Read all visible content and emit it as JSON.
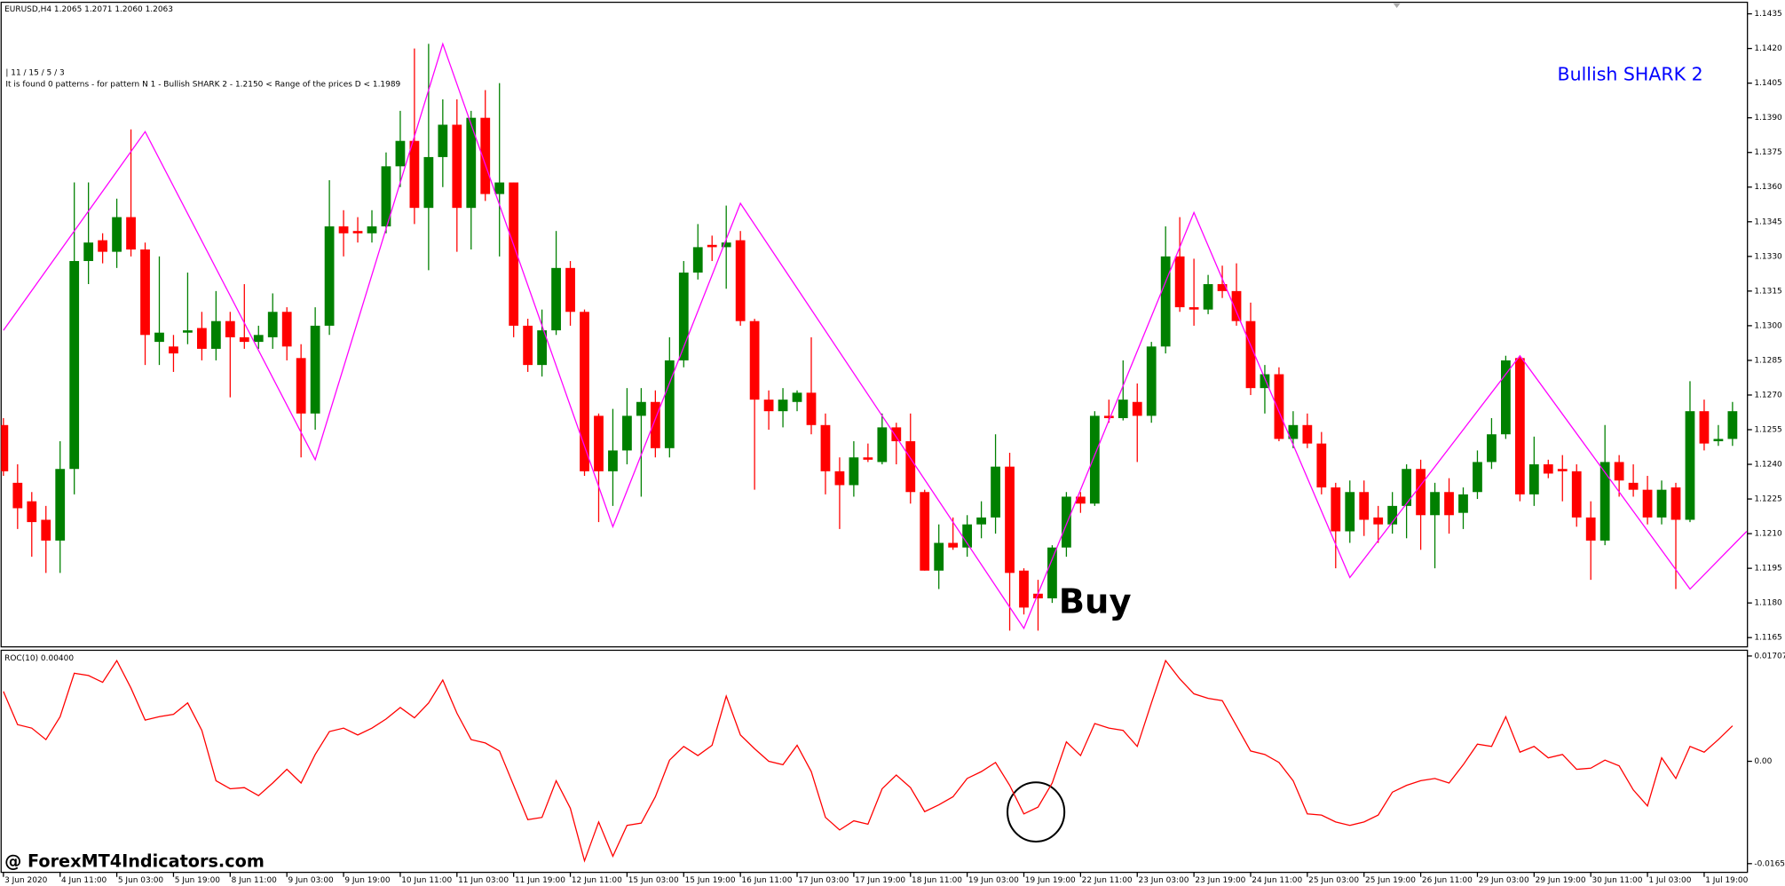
{
  "chart_data": [
    {
      "type": "candlestick",
      "title": "EURUSD,H4  1.2065 1.2071 1.2060 1.2063",
      "info": [
        "| 11 / 15 / 5 / 3",
        "It is found 0 patterns  -  for pattern N 1 - Bullish SHARK 2 - 1.2150 < Range of the prices D < 1.1989"
      ],
      "annotations": [
        {
          "text": "Bullish SHARK 2",
          "color": "#0000ff"
        },
        {
          "text": "Buy",
          "color": "#000000"
        }
      ],
      "up_color": "#008000",
      "down_color": "#ff0000",
      "ylim": [
        1.1161,
        1.144
      ],
      "yticks": [
        1.1435,
        {
          "value": 1.142,
          "label": "1.1420"
        },
        1.1405,
        {
          "value": 1.139,
          "label": "1.1390"
        },
        1.1375,
        {
          "value": 1.136,
          "label": "1.1360"
        },
        1.1345,
        {
          "value": 1.133,
          "label": "1.1330"
        },
        1.1315,
        {
          "value": 1.13,
          "label": "1.1300"
        },
        1.1285,
        {
          "value": 1.127,
          "label": "1.1270"
        },
        1.1255,
        {
          "value": 1.124,
          "label": "1.1240"
        },
        1.1225,
        {
          "value": 1.121,
          "label": "1.1210"
        },
        1.1195,
        {
          "value": 1.118,
          "label": "1.1180"
        },
        1.1165
      ],
      "ohlc": [
        [
          1.1257,
          1.126,
          1.1235,
          1.1237
        ],
        [
          1.1232,
          1.124,
          1.1212,
          1.1221
        ],
        [
          1.1224,
          1.1228,
          1.12,
          1.1215
        ],
        [
          1.1216,
          1.1222,
          1.1193,
          1.1207
        ],
        [
          1.1207,
          1.125,
          1.1193,
          1.1238
        ],
        [
          1.1238,
          1.1362,
          1.1227,
          1.1328
        ],
        [
          1.1328,
          1.1362,
          1.1318,
          1.1336
        ],
        [
          1.1337,
          1.134,
          1.1327,
          1.1332
        ],
        [
          1.1332,
          1.1355,
          1.1325,
          1.1347
        ],
        [
          1.1347,
          1.1385,
          1.133,
          1.1333
        ],
        [
          1.1333,
          1.1336,
          1.1283,
          1.1296
        ],
        [
          1.1293,
          1.133,
          1.1283,
          1.1297
        ],
        [
          1.1291,
          1.1296,
          1.128,
          1.1288
        ],
        [
          1.1297,
          1.1323,
          1.1292,
          1.1298
        ],
        [
          1.1299,
          1.1306,
          1.1285,
          1.129
        ],
        [
          1.129,
          1.1315,
          1.1285,
          1.1302
        ],
        [
          1.1302,
          1.1306,
          1.1269,
          1.1295
        ],
        [
          1.1295,
          1.1318,
          1.129,
          1.1293
        ],
        [
          1.1293,
          1.13,
          1.129,
          1.1296
        ],
        [
          1.1295,
          1.1314,
          1.129,
          1.1306
        ],
        [
          1.1306,
          1.1308,
          1.1285,
          1.1291
        ],
        [
          1.1286,
          1.1292,
          1.1243,
          1.1262
        ],
        [
          1.1262,
          1.1308,
          1.1255,
          1.13
        ],
        [
          1.13,
          1.1363,
          1.1296,
          1.1343
        ],
        [
          1.1343,
          1.135,
          1.133,
          1.134
        ],
        [
          1.1341,
          1.1347,
          1.1336,
          1.134
        ],
        [
          1.134,
          1.135,
          1.1336,
          1.1343
        ],
        [
          1.1343,
          1.1375,
          1.134,
          1.1369
        ],
        [
          1.1369,
          1.1393,
          1.136,
          1.138
        ],
        [
          1.138,
          1.142,
          1.1344,
          1.1351
        ],
        [
          1.1351,
          1.1422,
          1.1324,
          1.1373
        ],
        [
          1.1373,
          1.1398,
          1.136,
          1.1387
        ],
        [
          1.1387,
          1.1398,
          1.1332,
          1.1351
        ],
        [
          1.1351,
          1.1393,
          1.1333,
          1.139
        ],
        [
          1.139,
          1.1402,
          1.1354,
          1.1357
        ],
        [
          1.1357,
          1.1405,
          1.133,
          1.1362
        ],
        [
          1.1362,
          1.1362,
          1.1295,
          1.13
        ],
        [
          1.13,
          1.1303,
          1.128,
          1.1283
        ],
        [
          1.1283,
          1.1307,
          1.1278,
          1.1298
        ],
        [
          1.1298,
          1.1341,
          1.1296,
          1.1325
        ],
        [
          1.1325,
          1.1328,
          1.13,
          1.1306
        ],
        [
          1.1306,
          1.1307,
          1.1235,
          1.1237
        ],
        [
          1.1261,
          1.1262,
          1.1215,
          1.1237
        ],
        [
          1.1237,
          1.1264,
          1.1222,
          1.1246
        ],
        [
          1.1246,
          1.1273,
          1.124,
          1.1261
        ],
        [
          1.1261,
          1.1273,
          1.1226,
          1.1267
        ],
        [
          1.1267,
          1.1272,
          1.1243,
          1.1247
        ],
        [
          1.1247,
          1.1295,
          1.1243,
          1.1285
        ],
        [
          1.1285,
          1.1328,
          1.1282,
          1.1323
        ],
        [
          1.1323,
          1.1344,
          1.132,
          1.1334
        ],
        [
          1.1335,
          1.1339,
          1.1328,
          1.1334
        ],
        [
          1.1334,
          1.1352,
          1.1316,
          1.1336
        ],
        [
          1.1337,
          1.1341,
          1.13,
          1.1302
        ],
        [
          1.1302,
          1.1303,
          1.1229,
          1.1268
        ],
        [
          1.1268,
          1.1272,
          1.1255,
          1.1263
        ],
        [
          1.1263,
          1.1273,
          1.1256,
          1.1268
        ],
        [
          1.1267,
          1.1272,
          1.1263,
          1.1271
        ],
        [
          1.1271,
          1.1295,
          1.1253,
          1.1257
        ],
        [
          1.1257,
          1.1262,
          1.1227,
          1.1237
        ],
        [
          1.1237,
          1.1243,
          1.1212,
          1.1231
        ],
        [
          1.1231,
          1.125,
          1.1226,
          1.1243
        ],
        [
          1.1243,
          1.1249,
          1.1241,
          1.1242
        ],
        [
          1.1241,
          1.1262,
          1.124,
          1.1256
        ],
        [
          1.1256,
          1.1258,
          1.124,
          1.125
        ],
        [
          1.125,
          1.1262,
          1.1223,
          1.1228
        ],
        [
          1.1228,
          1.1229,
          1.1194,
          1.1194
        ],
        [
          1.1194,
          1.1214,
          1.1186,
          1.1206
        ],
        [
          1.1206,
          1.1217,
          1.1203,
          1.1204
        ],
        [
          1.1204,
          1.1218,
          1.12,
          1.1214
        ],
        [
          1.1214,
          1.1224,
          1.1208,
          1.1217
        ],
        [
          1.1217,
          1.1253,
          1.121,
          1.1239
        ],
        [
          1.1239,
          1.1245,
          1.1168,
          1.1193
        ],
        [
          1.1194,
          1.1195,
          1.1175,
          1.1178
        ],
        [
          1.1184,
          1.119,
          1.1168,
          1.1182
        ],
        [
          1.1182,
          1.1205,
          1.118,
          1.1204
        ],
        [
          1.1204,
          1.1228,
          1.12,
          1.1226
        ],
        [
          1.1226,
          1.1228,
          1.1219,
          1.1223
        ],
        [
          1.1223,
          1.1263,
          1.1222,
          1.1261
        ],
        [
          1.1261,
          1.1268,
          1.1258,
          1.126
        ],
        [
          1.126,
          1.1285,
          1.1259,
          1.1268
        ],
        [
          1.1267,
          1.1275,
          1.1241,
          1.1261
        ],
        [
          1.1261,
          1.1293,
          1.1258,
          1.1291
        ],
        [
          1.1291,
          1.1343,
          1.1288,
          1.133
        ],
        [
          1.133,
          1.1347,
          1.1306,
          1.1308
        ],
        [
          1.1308,
          1.1329,
          1.13,
          1.1307
        ],
        [
          1.1307,
          1.1322,
          1.1305,
          1.1318
        ],
        [
          1.1318,
          1.1326,
          1.1312,
          1.1315
        ],
        [
          1.1315,
          1.1327,
          1.13,
          1.1302
        ],
        [
          1.1302,
          1.131,
          1.127,
          1.1273
        ],
        [
          1.1273,
          1.1283,
          1.1262,
          1.1279
        ],
        [
          1.1279,
          1.1282,
          1.125,
          1.1251
        ],
        [
          1.1251,
          1.1263,
          1.1247,
          1.1257
        ],
        [
          1.1257,
          1.1262,
          1.1247,
          1.1249
        ],
        [
          1.1249,
          1.1254,
          1.1227,
          1.123
        ],
        [
          1.123,
          1.1232,
          1.1195,
          1.1211
        ],
        [
          1.1211,
          1.1233,
          1.1206,
          1.1228
        ],
        [
          1.1228,
          1.1233,
          1.1209,
          1.1216
        ],
        [
          1.1217,
          1.1222,
          1.1206,
          1.1214
        ],
        [
          1.1214,
          1.1228,
          1.121,
          1.1222
        ],
        [
          1.1222,
          1.124,
          1.1208,
          1.1238
        ],
        [
          1.1238,
          1.1242,
          1.1203,
          1.1218
        ],
        [
          1.1218,
          1.1232,
          1.1195,
          1.1228
        ],
        [
          1.1228,
          1.1234,
          1.121,
          1.1218
        ],
        [
          1.1219,
          1.123,
          1.1212,
          1.1227
        ],
        [
          1.1228,
          1.1246,
          1.1225,
          1.1241
        ],
        [
          1.1241,
          1.126,
          1.1238,
          1.1253
        ],
        [
          1.1253,
          1.1287,
          1.1251,
          1.1285
        ],
        [
          1.1286,
          1.1287,
          1.1224,
          1.1227
        ],
        [
          1.1227,
          1.1252,
          1.1222,
          1.124
        ],
        [
          1.124,
          1.1242,
          1.1234,
          1.1236
        ],
        [
          1.1238,
          1.1244,
          1.1224,
          1.1237
        ],
        [
          1.1237,
          1.124,
          1.1213,
          1.1217
        ],
        [
          1.1217,
          1.1224,
          1.119,
          1.1207
        ],
        [
          1.1207,
          1.1257,
          1.1205,
          1.1241
        ],
        [
          1.1241,
          1.1244,
          1.1226,
          1.1233
        ],
        [
          1.1232,
          1.124,
          1.1226,
          1.1229
        ],
        [
          1.1229,
          1.1235,
          1.1214,
          1.1217
        ],
        [
          1.1217,
          1.1233,
          1.1214,
          1.1229
        ],
        [
          1.123,
          1.1232,
          1.1186,
          1.1216
        ],
        [
          1.1216,
          1.1276,
          1.1215,
          1.1263
        ],
        [
          1.1263,
          1.1268,
          1.1246,
          1.1249
        ],
        [
          1.125,
          1.1257,
          1.1248,
          1.1251
        ],
        [
          1.1251,
          1.1267,
          1.1248,
          1.1263
        ]
      ],
      "zigzag": {
        "color": "#ff00ff",
        "x": [
          0,
          10,
          22,
          31,
          43,
          52,
          72,
          84,
          95,
          107,
          119,
          123
        ],
        "values": [
          1.1298,
          1.1384,
          1.1242,
          1.1422,
          1.1213,
          1.1353,
          1.1169,
          1.1349,
          1.1191,
          1.1287,
          1.1186,
          1.1211
        ]
      }
    },
    {
      "type": "line",
      "title": "ROC(10) 0.00400",
      "color": "#ff0000",
      "ylim": [
        -0.018,
        0.018
      ],
      "yticks": [
        0.01707,
        {
          "value": 0,
          "label": "0.00"
        },
        -0.01659
      ],
      "categories": [
        "3 Jun 2020",
        null,
        null,
        null,
        "4 Jun 11:00",
        null,
        null,
        null,
        "5 Jun 03:00",
        null,
        null,
        null,
        "5 Jun 19:00",
        null,
        null,
        null,
        "8 Jun 11:00",
        null,
        null,
        null,
        "9 Jun 03:00",
        null,
        null,
        null,
        "9 Jun 19:00",
        null,
        null,
        null,
        "10 Jun 11:00",
        null,
        null,
        null,
        "11 Jun 03:00",
        null,
        null,
        null,
        "11 Jun 19:00",
        null,
        null,
        null,
        "12 Jun 11:00",
        null,
        null,
        null,
        "15 Jun 03:00",
        null,
        null,
        null,
        "15 Jun 19:00",
        null,
        null,
        null,
        "16 Jun 11:00",
        null,
        null,
        null,
        "17 Jun 03:00",
        null,
        null,
        null,
        "17 Jun 19:00",
        null,
        null,
        null,
        "18 Jun 11:00",
        null,
        null,
        null,
        "19 Jun 03:00",
        null,
        null,
        null,
        "19 Jun 19:00",
        null,
        null,
        null,
        "22 Jun 11:00",
        null,
        null,
        null,
        "23 Jun 03:00",
        null,
        null,
        null,
        "23 Jun 19:00",
        null,
        null,
        null,
        "24 Jun 11:00",
        null,
        null,
        null,
        "25 Jun 03:00",
        null,
        null,
        null,
        "25 Jun 19:00",
        null,
        null,
        null,
        "26 Jun 11:00",
        null,
        null,
        null,
        "29 Jun 03:00",
        null,
        null,
        null,
        "29 Jun 19:00",
        null,
        null,
        null,
        "30 Jun 11:00",
        null,
        null,
        null,
        "1 Jul 03:00",
        null,
        null,
        null,
        "1 Jul 19:00",
        null,
        null
      ],
      "values": [
        0.01132,
        0.00594,
        0.00538,
        0.00352,
        0.00723,
        0.01428,
        0.01391,
        0.0128,
        0.01632,
        0.01187,
        0.00668,
        0.00723,
        0.00761,
        0.00946,
        0.00501,
        -0.00315,
        -0.00445,
        -0.00427,
        -0.00557,
        -0.00352,
        -0.0013,
        -0.00352,
        0.00111,
        0.00482,
        0.00538,
        0.00427,
        0.00538,
        0.00686,
        0.00872,
        0.00705,
        0.00946,
        0.01317,
        0.00779,
        0.00352,
        0.00297,
        0.00167,
        -0.0039,
        -0.00946,
        -0.00909,
        -0.00315,
        -0.00761,
        -0.01614,
        -0.00983,
        -0.0154,
        -0.01039,
        -0.01002,
        -0.00575,
        0.00019,
        0.00241,
        0.00093,
        0.0026,
        0.01057,
        0.00427,
        0.00204,
        0,
        -0.00056,
        0.0026,
        -0.00167,
        -0.00909,
        -0.01113,
        -0.00965,
        -0.0102,
        -0.00445,
        -0.00223,
        -0.00427,
        -0.00816,
        -0.00705,
        -0.00575,
        -0.00278,
        -0.00167,
        -0.00019,
        -0.0039,
        -0.00853,
        -0.00742,
        -0.00352,
        0.00315,
        0.00093,
        0.00612,
        0.00538,
        0.00501,
        0.00241,
        0.00946,
        0.01632,
        0.01336,
        0.01094,
        0.0102,
        0.00983,
        0.00575,
        0.00167,
        0.00111,
        -0.00019,
        -0.00315,
        -0.00853,
        -0.00872,
        -0.00983,
        -0.01039,
        -0.00983,
        -0.00872,
        -0.00501,
        -0.0039,
        -0.00315,
        -0.00278,
        -0.00352,
        -0.00056,
        0.00278,
        0.00241,
        0.00723,
        0.00148,
        0.00241,
        0.00056,
        0.00111,
        -0.0013,
        -0.00111,
        0.00019,
        -0.00074,
        -0.00464,
        -0.00723,
        0.00056,
        -0.00278,
        0.00241,
        0.00148,
        0.00352,
        0.00575
      ]
    }
  ],
  "watermark": "@ ForexMT4Indicators.com"
}
